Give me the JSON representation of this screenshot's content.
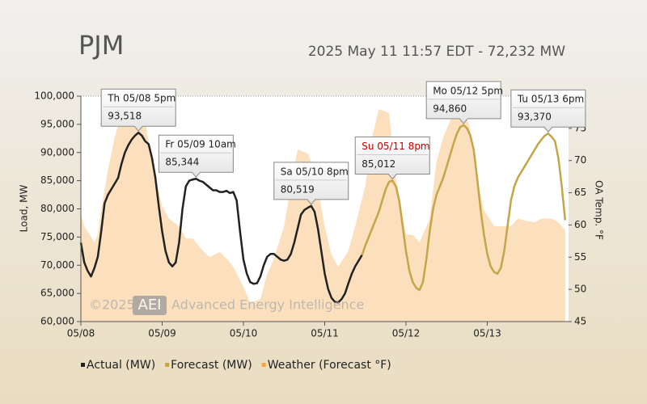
{
  "chart_data": {
    "type": "line",
    "title": "PJM",
    "subtitle": "2025 May 11 11:57 EDT - 72,232 MW",
    "y_label": "Load, MW",
    "y2_label": "OA Temp. °F",
    "watermark": {
      "copyright": "©2025",
      "logo": "AEI",
      "name": "Advanced Energy Intelligence"
    },
    "xlim": [
      0,
      144
    ],
    "xticks": [
      {
        "value": 0,
        "label": "05/08"
      },
      {
        "value": 24,
        "label": "05/09"
      },
      {
        "value": 48,
        "label": "05/10"
      },
      {
        "value": 72,
        "label": "05/11"
      },
      {
        "value": 96,
        "label": "05/12"
      },
      {
        "value": 120,
        "label": "05/13"
      }
    ],
    "ylim": [
      60000,
      100000
    ],
    "yticks": [
      {
        "value": 60000,
        "label": "60,000"
      },
      {
        "value": 65000,
        "label": "65,000"
      },
      {
        "value": 70000,
        "label": "70,000"
      },
      {
        "value": 75000,
        "label": "75,000"
      },
      {
        "value": 80000,
        "label": "80,000"
      },
      {
        "value": 85000,
        "label": "85,000"
      },
      {
        "value": 90000,
        "label": "90,000"
      },
      {
        "value": 95000,
        "label": "95,000"
      },
      {
        "value": 100000,
        "label": "100,000"
      }
    ],
    "y2lim": [
      45,
      80
    ],
    "y2ticks": [
      45,
      50,
      55,
      60,
      65,
      70,
      75,
      80
    ],
    "series": [
      {
        "name": "Actual (MW)",
        "color": "#222222",
        "x": [
          0,
          1,
          2,
          3,
          4,
          5,
          6,
          7,
          8,
          9,
          10,
          11,
          12,
          13,
          14,
          15,
          16,
          17,
          18,
          19,
          20,
          21,
          22,
          23,
          24,
          25,
          26,
          27,
          28,
          29,
          30,
          31,
          32,
          33,
          34,
          35,
          36,
          37,
          38,
          39,
          40,
          41,
          42,
          43,
          44,
          45,
          46,
          47,
          48,
          49,
          50,
          51,
          52,
          53,
          54,
          55,
          56,
          57,
          58,
          59,
          60,
          61,
          62,
          63,
          64,
          65,
          66,
          67,
          68,
          69,
          70,
          71,
          72,
          73,
          74,
          75,
          76,
          77,
          78,
          79,
          80,
          81,
          82,
          83
        ],
        "values": [
          74000,
          70500,
          69000,
          68000,
          69500,
          71500,
          76000,
          81000,
          82500,
          83500,
          84500,
          85500,
          88000,
          90000,
          91300,
          92300,
          93000,
          93518,
          93000,
          92000,
          91500,
          89000,
          85500,
          80500,
          76000,
          72500,
          70500,
          69800,
          70500,
          74000,
          80000,
          84000,
          85000,
          85200,
          85344,
          85000,
          84800,
          84300,
          83800,
          83300,
          83300,
          83000,
          83000,
          83200,
          82800,
          83000,
          81500,
          76000,
          71000,
          68500,
          67000,
          66700,
          66800,
          68000,
          70000,
          71500,
          72000,
          72000,
          71500,
          71000,
          70800,
          71000,
          72000,
          74000,
          76500,
          79000,
          79800,
          80200,
          80519,
          79500,
          76500,
          72500,
          68500,
          65800,
          64200,
          63500,
          63400,
          64000,
          65000,
          66800,
          68500,
          69800,
          70800,
          71800
        ]
      },
      {
        "name": "Forecast (MW)",
        "color": "#c4a548",
        "x": [
          83,
          84,
          85,
          86,
          87,
          88,
          89,
          90,
          91,
          92,
          93,
          94,
          95,
          96,
          97,
          98,
          99,
          100,
          101,
          102,
          103,
          104,
          105,
          106,
          107,
          108,
          109,
          110,
          111,
          112,
          113,
          114,
          115,
          116,
          117,
          118,
          119,
          120,
          121,
          122,
          123,
          124,
          125,
          126,
          127,
          128,
          129,
          130,
          131,
          132,
          133,
          134,
          135,
          136,
          137,
          138,
          139,
          140,
          141,
          142,
          143
        ],
        "values": [
          71800,
          73500,
          75000,
          76500,
          78000,
          79500,
          81500,
          83500,
          84800,
          85012,
          84000,
          81500,
          77000,
          72500,
          69000,
          67000,
          66000,
          65600,
          67000,
          71000,
          76000,
          80000,
          82500,
          84000,
          85500,
          87500,
          89500,
          91500,
          93300,
          94500,
          94860,
          94300,
          93000,
          90500,
          85500,
          80000,
          75500,
          72000,
          69800,
          68800,
          68500,
          69500,
          72500,
          77000,
          81500,
          84000,
          85500,
          86500,
          87500,
          88500,
          89500,
          90500,
          91500,
          92300,
          93000,
          93370,
          92800,
          92000,
          89000,
          84000,
          78000
        ]
      },
      {
        "name": "Weather (Forecast °F)",
        "color": "#f5a742",
        "axis": "y2",
        "x": [
          0,
          1,
          4,
          5,
          6,
          8,
          10,
          12,
          14,
          17,
          19,
          21,
          24,
          26,
          29,
          31,
          33,
          36,
          38,
          41,
          43,
          45,
          48,
          50,
          53,
          55,
          57,
          60,
          62,
          64,
          67,
          69,
          72,
          74,
          76,
          79,
          81,
          84,
          86,
          88,
          91,
          93,
          96,
          98,
          100,
          103,
          105,
          107,
          110,
          112,
          115,
          117,
          119,
          122,
          124,
          127,
          129,
          131,
          134,
          136,
          139,
          141,
          143
        ],
        "values": [
          61.7,
          59.8,
          57.3,
          58.5,
          62.3,
          68.6,
          73.6,
          77.4,
          79.3,
          79.3,
          76.1,
          69.8,
          62.9,
          61,
          59.8,
          57.9,
          57.9,
          56,
          55,
          55.8,
          54.8,
          53.5,
          50.4,
          47.9,
          48.5,
          52.3,
          54.8,
          59.8,
          66.1,
          71.7,
          71.1,
          68.6,
          59.8,
          55.4,
          53.5,
          56,
          59.8,
          66.1,
          73.6,
          78,
          77.4,
          67.3,
          58.5,
          58.5,
          57.3,
          61,
          69.8,
          73.6,
          77.4,
          79.3,
          74.9,
          67.3,
          62.3,
          59.8,
          59.8,
          59.8,
          61,
          60.7,
          60.4,
          61,
          61,
          60.4,
          59.2
        ]
      }
    ],
    "annotations": [
      {
        "label": "Th 05/08 5pm",
        "value_label": "93,518",
        "x": 17,
        "y": 93518
      },
      {
        "label": "Fr 05/09 10am",
        "value_label": "85,344",
        "x": 34,
        "y": 85344
      },
      {
        "label": "Sa 05/10 8pm",
        "value_label": "80,519",
        "x": 68,
        "y": 80519
      },
      {
        "label": "Su 05/11 8pm",
        "value_label": "85,012",
        "x": 92,
        "y": 85012,
        "color": "#cc0000"
      },
      {
        "label": "Mo 05/12 5pm",
        "value_label": "94,860",
        "x": 113,
        "y": 94860
      },
      {
        "label": "Tu 05/13 6pm",
        "value_label": "93,370",
        "x": 138,
        "y": 93370
      }
    ]
  }
}
